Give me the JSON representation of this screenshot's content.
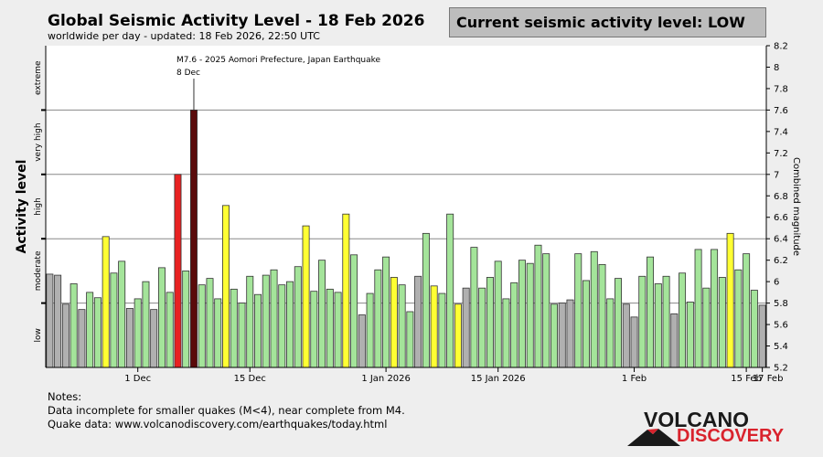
{
  "header": {
    "title": "Global Seismic Activity Level - 18 Feb 2026",
    "subtitle": "worldwide per day - updated: 18 Feb 2026, 22:50 UTC",
    "current_level": "Current seismic activity level: LOW"
  },
  "notes": {
    "heading": "Notes:",
    "line1": "Data incomplete for smaller quakes (M<4), near complete from M4.",
    "line2": "Quake data: www.volcanodiscovery.com/earthquakes/today.html"
  },
  "logo": {
    "top": "VOLCANO",
    "bottom": "DISCOVERY"
  },
  "colors": {
    "gray": "#b0b0b0",
    "green": "#a4e49a",
    "yellow": "#ffff33",
    "red": "#e82222",
    "darkred": "#5a0a0a",
    "grid": "#444444"
  },
  "chart_data": {
    "type": "bar",
    "title": "Global Seismic Activity Level - 18 Feb 2026",
    "ylabel_left": "Activity level",
    "ylabel_right": "Combined magnitude",
    "ylim": [
      5.2,
      8.2
    ],
    "right_ticks": [
      "5.2",
      "5.4",
      "5.6",
      "5.8",
      "6",
      "6.2",
      "6.4",
      "6.6",
      "6.8",
      "7",
      "7.2",
      "7.4",
      "7.6",
      "7.8",
      "8",
      "8.2"
    ],
    "left_levels": [
      "low",
      "moderate",
      "high",
      "very high",
      "extreme"
    ],
    "x_ticks": [
      {
        "label": "1 Dec",
        "index": 11
      },
      {
        "label": "15 Dec",
        "index": 25
      },
      {
        "label": "1 Jan 2026",
        "index": 42
      },
      {
        "label": "15 Jan 2026",
        "index": 56
      },
      {
        "label": "1 Feb",
        "index": 73
      },
      {
        "label": "15 Feb",
        "index": 87
      },
      {
        "label": "17 Feb",
        "index": 89
      }
    ],
    "annotation": {
      "text": "M7.6 - 2025 Aomori Prefecture, Japan Earthquake",
      "date": "8 Dec",
      "index": 18
    },
    "values": [
      6.07,
      6.06,
      5.79,
      5.98,
      5.74,
      5.9,
      5.85,
      6.42,
      6.08,
      6.19,
      5.75,
      5.84,
      6.0,
      5.74,
      6.13,
      5.9,
      7.0,
      6.1,
      7.6,
      5.97,
      6.03,
      5.84,
      6.71,
      5.93,
      5.8,
      6.05,
      5.88,
      6.06,
      6.11,
      5.97,
      6.0,
      6.14,
      6.52,
      5.91,
      6.2,
      5.93,
      5.9,
      6.63,
      6.25,
      5.69,
      5.89,
      6.11,
      6.23,
      6.04,
      5.97,
      5.72,
      6.05,
      6.45,
      5.96,
      5.89,
      6.63,
      5.79,
      5.94,
      6.32,
      5.94,
      6.04,
      6.19,
      5.84,
      5.99,
      6.2,
      6.17,
      6.34,
      6.26,
      5.79,
      5.8,
      5.83,
      6.26,
      6.01,
      6.28,
      6.16,
      5.84,
      6.03,
      5.79,
      5.67,
      6.05,
      6.23,
      5.98,
      6.05,
      5.7,
      6.08,
      5.81,
      6.3,
      5.94,
      6.3,
      6.04,
      6.45,
      6.11,
      6.26,
      5.92,
      5.78
    ],
    "categories": [
      "gray",
      "gray",
      "gray",
      "green",
      "gray",
      "green",
      "green",
      "yellow",
      "green",
      "green",
      "gray",
      "green",
      "green",
      "gray",
      "green",
      "green",
      "red",
      "green",
      "darkred",
      "green",
      "green",
      "green",
      "yellow",
      "green",
      "green",
      "green",
      "green",
      "green",
      "green",
      "green",
      "green",
      "green",
      "yellow",
      "green",
      "green",
      "green",
      "green",
      "yellow",
      "green",
      "gray",
      "green",
      "green",
      "green",
      "yellow",
      "green",
      "green",
      "gray",
      "green",
      "yellow",
      "green",
      "green",
      "yellow",
      "gray",
      "green",
      "green",
      "green",
      "green",
      "green",
      "green",
      "green",
      "green",
      "green",
      "green",
      "green",
      "gray",
      "gray",
      "green",
      "green",
      "green",
      "green",
      "green",
      "green",
      "gray",
      "gray",
      "green",
      "green",
      "green",
      "green",
      "gray",
      "green",
      "green",
      "green",
      "green",
      "green",
      "green",
      "yellow",
      "green",
      "green",
      "green",
      "gray"
    ]
  }
}
